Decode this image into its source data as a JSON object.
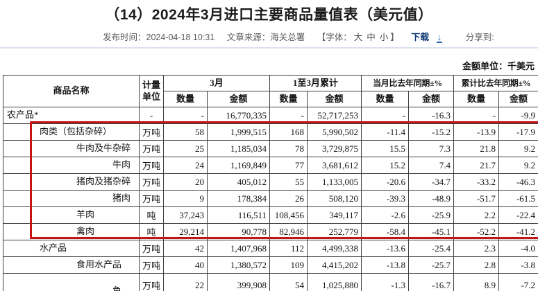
{
  "page": {
    "title": "（14）2024年3月进口主要商品量值表（美元值）",
    "meta": {
      "publish": "发布时间：2024-04-18 10:31",
      "source": "文章来源：海关总署",
      "font_label": "【字体：",
      "font_large": "大",
      "font_medium": "中",
      "font_small": "小",
      "font_label_end": "】",
      "download": "下载",
      "share": "分享到:"
    },
    "icons": {
      "download": "↓"
    },
    "unit_note": "金额单位：千美元"
  },
  "annotation": {
    "color": "#c41414"
  },
  "table": {
    "headers": {
      "name": "商品名称",
      "unit": "计量单位",
      "groups": [
        "3月",
        "1至3月累计",
        "当月比去年同期±%",
        "累计比去年同期±%"
      ],
      "qty": "数量",
      "amt": "金额"
    },
    "rows": [
      {
        "name": "农产品*",
        "indent": 0,
        "unit": "-",
        "q3": "-",
        "v3": "16,770,335",
        "qc": "-",
        "vc": "52,717,253",
        "qm": "-",
        "vm": "-16.3",
        "qy": "-",
        "vy": "-9.9"
      },
      {
        "name": "肉类（包括杂碎）",
        "indent": 1,
        "unit": "万吨",
        "q3": "58",
        "v3": "1,999,515",
        "qc": "168",
        "vc": "5,990,502",
        "qm": "-11.4",
        "vm": "-15.2",
        "qy": "-13.9",
        "vy": "-17.9"
      },
      {
        "name": "牛肉及牛杂碎",
        "indent": 2,
        "unit": "万吨",
        "q3": "25",
        "v3": "1,185,034",
        "qc": "78",
        "vc": "3,729,875",
        "qm": "15.5",
        "vm": "7.3",
        "qy": "21.8",
        "vy": "9.2"
      },
      {
        "name": "牛肉",
        "indent": 3,
        "unit": "万吨",
        "q3": "24",
        "v3": "1,169,849",
        "qc": "77",
        "vc": "3,681,612",
        "qm": "15.2",
        "vm": "7.4",
        "qy": "21.7",
        "vy": "9.2"
      },
      {
        "name": "猪肉及猪杂碎",
        "indent": 2,
        "unit": "万吨",
        "q3": "20",
        "v3": "405,012",
        "qc": "55",
        "vc": "1,133,005",
        "qm": "-20.6",
        "vm": "-34.7",
        "qy": "-33.2",
        "vy": "-46.3"
      },
      {
        "name": "猪肉",
        "indent": 3,
        "unit": "万吨",
        "q3": "9",
        "v3": "178,384",
        "qc": "26",
        "vc": "508,120",
        "qm": "-39.3",
        "vm": "-48.9",
        "qy": "-51.7",
        "vy": "-61.5"
      },
      {
        "name": "羊肉",
        "indent": 2,
        "unit": "吨",
        "q3": "37,243",
        "v3": "116,511",
        "qc": "108,456",
        "vc": "349,117",
        "qm": "-2.6",
        "vm": "-25.9",
        "qy": "2.2",
        "vy": "-22.4"
      },
      {
        "name": "禽肉",
        "indent": 2,
        "unit": "吨",
        "q3": "29,214",
        "v3": "90,778",
        "qc": "82,946",
        "vc": "252,779",
        "qm": "-58.4",
        "vm": "-45.1",
        "qy": "-52.2",
        "vy": "-41.2"
      },
      {
        "name": "水产品",
        "indent": 1,
        "unit": "万吨",
        "q3": "42",
        "v3": "1,407,968",
        "qc": "112",
        "vc": "4,499,338",
        "qm": "-13.6",
        "vm": "-25.4",
        "qy": "2.3",
        "vy": "-4.0"
      },
      {
        "name": "食用水产品",
        "indent": 2,
        "unit": "万吨",
        "q3": "40",
        "v3": "1,380,572",
        "qc": "109",
        "vc": "4,415,202",
        "qm": "-13.8",
        "vm": "-25.7",
        "qy": "2.8",
        "vy": "-3.8"
      },
      {
        "name": "冻鱼",
        "indent": 3,
        "wrap": true,
        "unit": "万吨",
        "q3": "22",
        "v3": "399,908",
        "qc": "54",
        "vc": "1,025,880",
        "qm": "-1.3",
        "vm": "-16.7",
        "qy": "8.9",
        "vy": "-7.2"
      }
    ]
  }
}
